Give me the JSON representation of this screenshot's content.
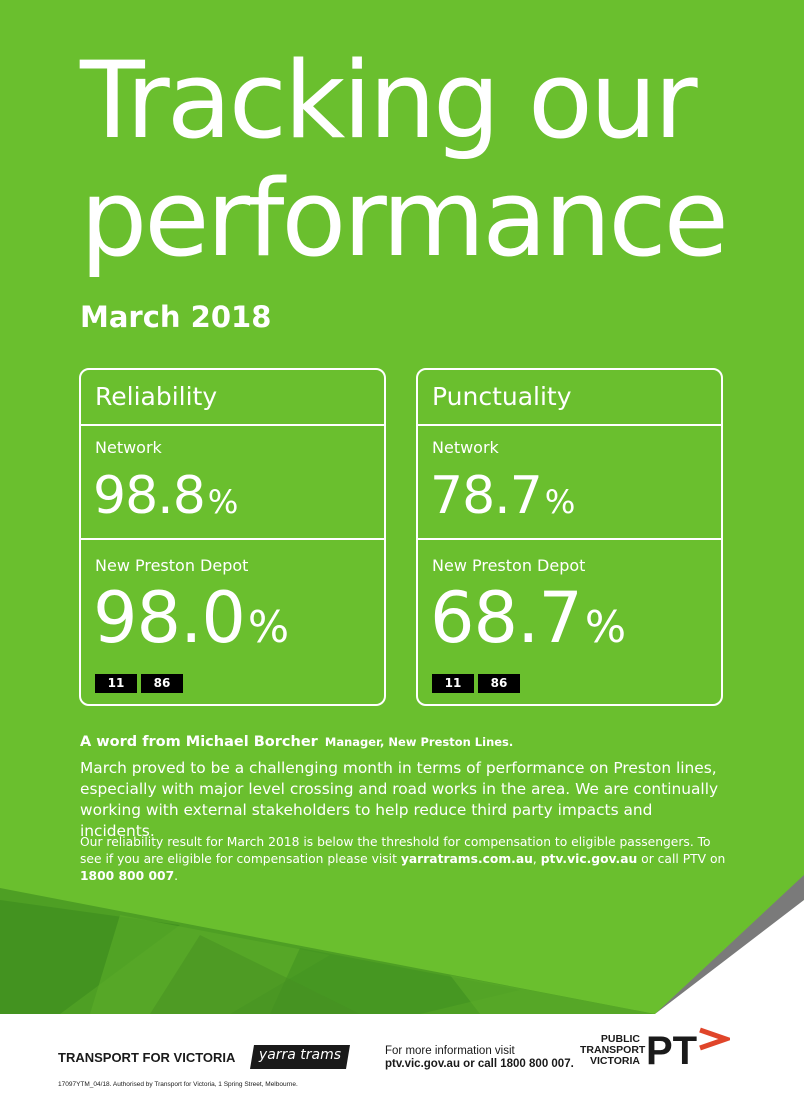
{
  "colors": {
    "brand_green": "#6ABF2E",
    "dark_green": "#3E8F1F",
    "white": "#FFFFFF",
    "ptv_orange": "#E0452A",
    "grey_accent": "#7A7A7A"
  },
  "poster": {
    "title_line1": "Tracking our",
    "title_line2": "performance",
    "month": "March 2018"
  },
  "reliability": {
    "heading": "Reliability",
    "network_label": "Network",
    "network_value": "98.8",
    "depot_label": "New Preston Depot",
    "depot_value": "98.0",
    "percent_sign": "%",
    "routes": [
      "11",
      "86"
    ]
  },
  "punctuality": {
    "heading": "Punctuality",
    "network_label": "Network",
    "network_value": "78.7",
    "depot_label": "New Preston Depot",
    "depot_value": "68.7",
    "percent_sign": "%",
    "routes": [
      "11",
      "86"
    ]
  },
  "message": {
    "intro": "A word from Michael Borcher",
    "role": "Manager, New Preston Lines.",
    "body": "March proved to be a challenging month in terms of performance on Preston lines, especially with major level crossing and road works in the area. We are continually working with external stakeholders to help reduce third party impacts and incidents."
  },
  "compensation": {
    "part1": "Our reliability result for March 2018 is below the threshold for compensation to eligible passengers. To see if you are eligible for compensation please visit ",
    "site1": "yarratrams.com.au",
    "sep": ", ",
    "site2": "ptv.vic.gov.au",
    "part2": " or call PTV on ",
    "phone": "1800 800 007",
    "end": "."
  },
  "footer": {
    "tfv_logo": "TRANSPORT FOR VICTORIA",
    "yarra_logo": "yarra trams",
    "info_line1": "For more information visit",
    "info_line2": "ptv.vic.gov.au or call 1800 800 007.",
    "ptv_line1": "PUBLIC",
    "ptv_line2": "TRANSPORT",
    "ptv_line3": "VICTORIA",
    "ptv_mark": "PT",
    "fineprint": "17097YTM_04/18. Authorised by Transport for Victoria, 1 Spring Street, Melbourne."
  }
}
